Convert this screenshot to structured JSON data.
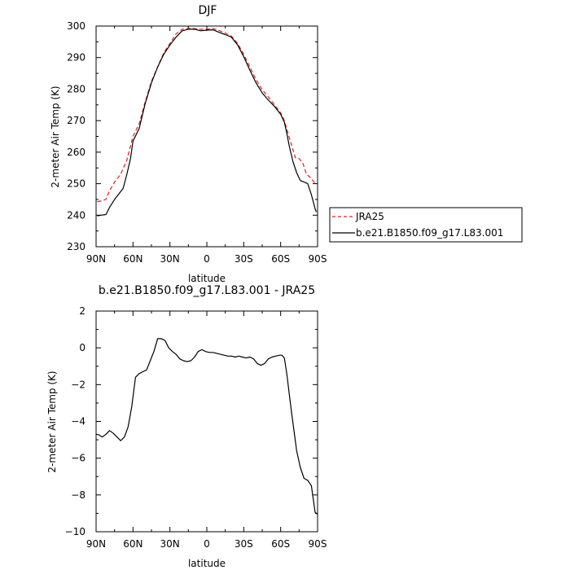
{
  "chart_data": [
    {
      "type": "line",
      "title": "DJF",
      "xlabel": "latitude",
      "ylabel": "2-meter Air Temp (K)",
      "xlim": [
        90,
        -90
      ],
      "ylim": [
        230,
        300
      ],
      "xticks": [
        90,
        60,
        30,
        0,
        -30,
        -60,
        -90
      ],
      "xtick_labels": [
        "90N",
        "60N",
        "30N",
        "0",
        "30S",
        "60S",
        "90S"
      ],
      "yticks": [
        230,
        240,
        250,
        260,
        270,
        280,
        290,
        300
      ],
      "ytick_labels": [
        "230",
        "240",
        "250",
        "260",
        "270",
        "280",
        "290",
        "300"
      ],
      "grid": false,
      "legend_placement": "right, outside",
      "series": [
        {
          "name": "JRA25",
          "color": "#e02020",
          "style": "dashed",
          "x": [
            89,
            86,
            82,
            79,
            75,
            70,
            65,
            60,
            55,
            50,
            45,
            40,
            35,
            30,
            25,
            20,
            15,
            10,
            5,
            0,
            -5,
            -10,
            -15,
            -20,
            -25,
            -30,
            -35,
            -40,
            -45,
            -50,
            -55,
            -60,
            -63,
            -66,
            -69,
            -72,
            -75,
            -78,
            -81,
            -84,
            -87,
            -89
          ],
          "y": [
            244.3,
            244.5,
            245,
            247.8,
            250.5,
            253,
            257.5,
            265,
            269,
            276,
            282.5,
            287,
            291.5,
            294.5,
            297.5,
            299,
            299.3,
            299.2,
            299,
            299,
            299.2,
            298.6,
            297.8,
            296.8,
            294.5,
            291,
            287,
            283,
            279.8,
            277.5,
            275,
            272.5,
            270,
            266,
            262,
            258.2,
            258,
            256.5,
            253,
            252,
            250.5,
            249.8
          ]
        },
        {
          "name": "b.e21.B1850.f09_g17.L83.001",
          "color": "#000000",
          "style": "solid",
          "x": [
            89,
            86,
            82,
            79,
            75,
            72,
            68,
            65,
            62,
            60,
            55,
            50,
            45,
            40,
            35,
            30,
            25,
            20,
            15,
            10,
            5,
            0,
            -5,
            -10,
            -15,
            -20,
            -25,
            -30,
            -35,
            -40,
            -45,
            -50,
            -55,
            -60,
            -63,
            -65,
            -67,
            -70,
            -73,
            -76,
            -79,
            -82,
            -85,
            -88,
            -89
          ],
          "y": [
            239.8,
            240,
            240.2,
            242.5,
            245,
            246.5,
            248.5,
            253,
            258,
            263.5,
            267.5,
            275.5,
            282,
            287,
            291,
            294,
            296.5,
            298.5,
            299,
            299,
            298.5,
            298.7,
            298.8,
            298,
            297.3,
            296.5,
            294,
            290.3,
            286,
            282,
            278.8,
            276.5,
            274.5,
            272,
            269.5,
            266,
            262,
            257,
            253.5,
            251,
            250.5,
            250,
            246.5,
            242,
            241
          ]
        }
      ]
    },
    {
      "type": "line",
      "title": "b.e21.B1850.f09_g17.L83.001 - JRA25",
      "xlabel": "latitude",
      "ylabel": "2-meter Air Temp (K)",
      "xlim": [
        90,
        -90
      ],
      "ylim": [
        -10,
        2
      ],
      "xticks": [
        90,
        60,
        30,
        0,
        -30,
        -60,
        -90
      ],
      "xtick_labels": [
        "90N",
        "60N",
        "30N",
        "0",
        "30S",
        "60S",
        "90S"
      ],
      "yticks": [
        -10,
        -8,
        -6,
        -4,
        -2,
        0,
        2
      ],
      "ytick_labels": [
        "−10",
        "−8",
        "−6",
        "−4",
        "−2",
        "0",
        "2"
      ],
      "grid": false,
      "series": [
        {
          "color": "#000000",
          "style": "solid",
          "x": [
            90,
            88,
            85,
            82,
            79,
            76,
            73,
            70,
            67,
            64,
            61,
            58,
            55,
            52,
            49,
            46,
            43,
            40,
            37,
            34,
            31,
            28,
            25,
            22,
            19,
            16,
            13,
            10,
            7,
            4,
            1,
            -2,
            -5,
            -8,
            -11,
            -14,
            -17,
            -20,
            -23,
            -26,
            -29,
            -32,
            -35,
            -38,
            -41,
            -44,
            -47,
            -50,
            -53,
            -56,
            -59,
            -61,
            -63,
            -65,
            -67,
            -69,
            -71,
            -73,
            -76,
            -79,
            -82,
            -85,
            -88,
            -90
          ],
          "y": [
            -4.7,
            -4.72,
            -4.85,
            -4.7,
            -4.5,
            -4.65,
            -4.85,
            -5.05,
            -4.85,
            -4.3,
            -3.2,
            -1.6,
            -1.4,
            -1.3,
            -1.2,
            -0.7,
            -0.2,
            0.5,
            0.5,
            0.4,
            0.0,
            -0.2,
            -0.35,
            -0.6,
            -0.7,
            -0.75,
            -0.7,
            -0.5,
            -0.2,
            -0.1,
            -0.2,
            -0.25,
            -0.25,
            -0.3,
            -0.35,
            -0.4,
            -0.45,
            -0.45,
            -0.5,
            -0.45,
            -0.5,
            -0.55,
            -0.5,
            -0.6,
            -0.85,
            -0.95,
            -0.85,
            -0.6,
            -0.5,
            -0.45,
            -0.4,
            -0.4,
            -0.55,
            -1.4,
            -2.5,
            -3.6,
            -4.6,
            -5.6,
            -6.5,
            -7.1,
            -7.2,
            -7.5,
            -8.95,
            -9.05
          ]
        }
      ]
    }
  ]
}
